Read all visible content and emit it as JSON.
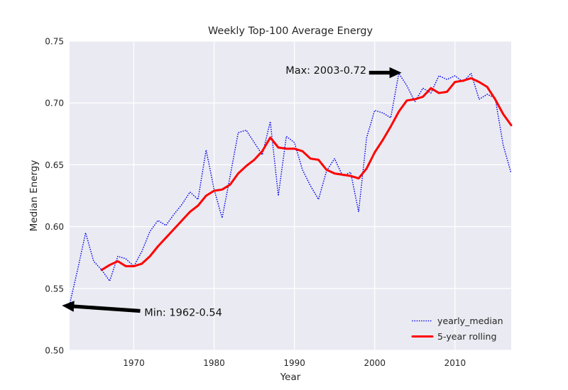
{
  "figure": {
    "background": "#ffffff",
    "plot_background": "#eaeaf2",
    "grid_color": "#ffffff",
    "text_color": "#262626"
  },
  "chart_data": {
    "type": "line",
    "title": "Weekly Top-100 Average Energy",
    "xlabel": "Year",
    "ylabel": "Median Energy",
    "xlim": [
      1962,
      2017
    ],
    "ylim": [
      0.5,
      0.75
    ],
    "xticks": [
      1970,
      1980,
      1990,
      2000,
      2010
    ],
    "yticks": [
      0.5,
      0.55,
      0.6,
      0.65,
      0.7,
      0.75
    ],
    "grid": true,
    "legend_position": "lower right",
    "series": [
      {
        "name": "yearly_median",
        "color": "#0000ee",
        "style": "dotted",
        "x": [
          1962,
          1963,
          1964,
          1965,
          1966,
          1967,
          1968,
          1969,
          1970,
          1971,
          1972,
          1973,
          1974,
          1975,
          1976,
          1977,
          1978,
          1979,
          1980,
          1981,
          1982,
          1983,
          1984,
          1985,
          1986,
          1987,
          1988,
          1989,
          1990,
          1991,
          1992,
          1993,
          1994,
          1995,
          1996,
          1997,
          1998,
          1999,
          2000,
          2001,
          2002,
          2003,
          2004,
          2005,
          2006,
          2007,
          2008,
          2009,
          2010,
          2011,
          2012,
          2013,
          2014,
          2015,
          2016,
          2017
        ],
        "values": [
          0.537,
          0.565,
          0.595,
          0.572,
          0.565,
          0.556,
          0.576,
          0.574,
          0.568,
          0.58,
          0.596,
          0.605,
          0.601,
          0.61,
          0.618,
          0.628,
          0.622,
          0.662,
          0.63,
          0.607,
          0.641,
          0.676,
          0.678,
          0.668,
          0.658,
          0.685,
          0.625,
          0.673,
          0.668,
          0.646,
          0.633,
          0.622,
          0.645,
          0.655,
          0.641,
          0.644,
          0.612,
          0.672,
          0.694,
          0.692,
          0.688,
          0.724,
          0.714,
          0.701,
          0.712,
          0.708,
          0.722,
          0.719,
          0.722,
          0.717,
          0.724,
          0.703,
          0.707,
          0.704,
          0.666,
          0.643
        ]
      },
      {
        "name": "5-year rolling",
        "color": "#ff0000",
        "style": "solid",
        "x": [
          1966,
          1967,
          1968,
          1969,
          1970,
          1971,
          1972,
          1973,
          1974,
          1975,
          1976,
          1977,
          1978,
          1979,
          1980,
          1981,
          1982,
          1983,
          1984,
          1985,
          1986,
          1987,
          1988,
          1989,
          1990,
          1991,
          1992,
          1993,
          1994,
          1995,
          1996,
          1997,
          1998,
          1999,
          2000,
          2001,
          2002,
          2003,
          2004,
          2005,
          2006,
          2007,
          2008,
          2009,
          2010,
          2011,
          2012,
          2013,
          2014,
          2015,
          2016,
          2017
        ],
        "values": [
          0.565,
          0.569,
          0.572,
          0.568,
          0.568,
          0.57,
          0.576,
          0.584,
          0.591,
          0.598,
          0.605,
          0.612,
          0.617,
          0.625,
          0.629,
          0.63,
          0.634,
          0.643,
          0.649,
          0.654,
          0.661,
          0.672,
          0.664,
          0.663,
          0.663,
          0.661,
          0.655,
          0.654,
          0.646,
          0.643,
          0.642,
          0.641,
          0.639,
          0.647,
          0.66,
          0.67,
          0.681,
          0.693,
          0.702,
          0.703,
          0.705,
          0.712,
          0.708,
          0.709,
          0.717,
          0.718,
          0.72,
          0.717,
          0.713,
          0.703,
          0.691,
          0.682
        ]
      }
    ],
    "annotations": [
      {
        "text": "Max: 2003-0.72",
        "xy": [
          2003.35,
          0.7245
        ],
        "arrow_from": [
          1999.3,
          0.7245
        ],
        "xytext": [
          1988.9,
          0.7236
        ],
        "direction": "right"
      },
      {
        "text": "Min: 1962-0.54",
        "xy": [
          1961.05,
          0.5362
        ],
        "arrow_from": [
          1970.8,
          0.5318
        ],
        "xytext": [
          1971.3,
          0.5278
        ],
        "direction": "left"
      }
    ]
  },
  "legend": {
    "items": [
      {
        "label": "yearly_median",
        "color": "#0000ee",
        "style": "dotted"
      },
      {
        "label": "5-year rolling",
        "color": "#ff0000",
        "style": "solid"
      }
    ]
  }
}
